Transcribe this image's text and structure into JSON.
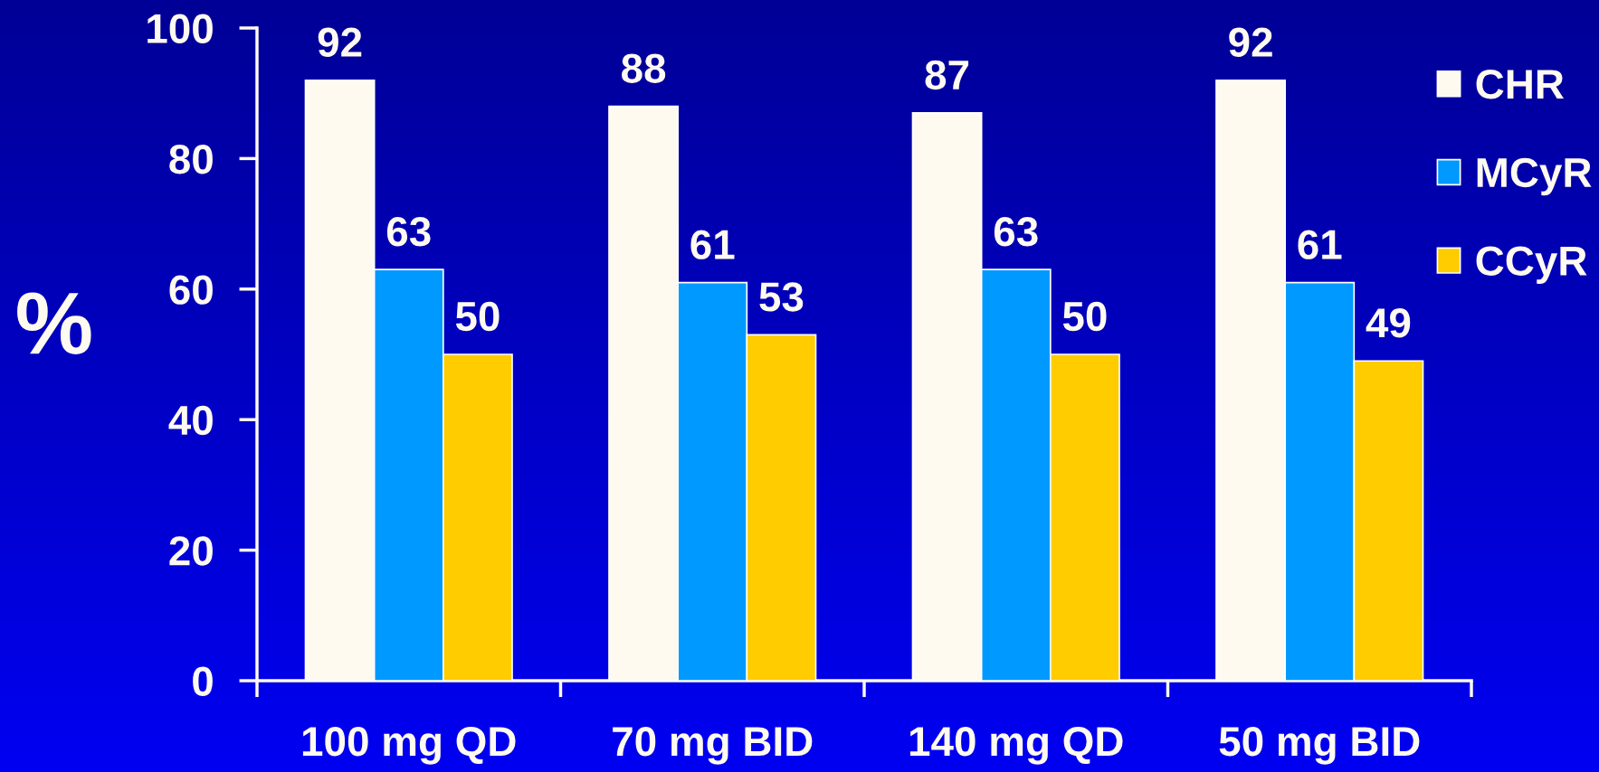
{
  "chart_data": {
    "type": "bar",
    "ylabel": "%",
    "categories": [
      "100 mg QD",
      "70 mg BID",
      "140 mg QD",
      "50 mg BID"
    ],
    "series": [
      {
        "name": "CHR",
        "color": "#fffaf0",
        "values": [
          92,
          88,
          87,
          92
        ]
      },
      {
        "name": "MCyR",
        "color": "#0099ff",
        "values": [
          63,
          61,
          63,
          61
        ]
      },
      {
        "name": "CCyR",
        "color": "#ffcc00",
        "values": [
          50,
          53,
          50,
          49
        ]
      }
    ],
    "ylim": [
      0,
      100
    ],
    "yticks": [
      0,
      20,
      40,
      60,
      80,
      100
    ],
    "data_labels": true,
    "legend": "top right",
    "grid": false
  }
}
